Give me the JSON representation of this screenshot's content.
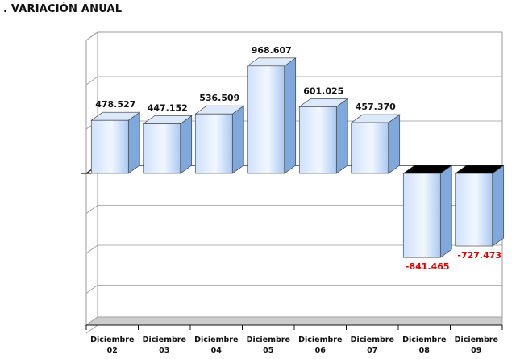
{
  "chart_data": {
    "type": "bar",
    "title": ". VARIACIÓN ANUAL",
    "categories": [
      [
        "Diciembre",
        "02"
      ],
      [
        "Diciembre",
        "03"
      ],
      [
        "Diciembre",
        "04"
      ],
      [
        "Diciembre",
        "05"
      ],
      [
        "Diciembre",
        "06"
      ],
      [
        "Diciembre",
        "07"
      ],
      [
        "Diciembre",
        "08"
      ],
      [
        "Diciembre",
        "09"
      ]
    ],
    "values": [
      478527,
      447152,
      536509,
      968607,
      601025,
      457370,
      -841465,
      -727473
    ],
    "labels": [
      "478.527",
      "447.152",
      "536.509",
      "968.607",
      "601.025",
      "457.370",
      "-841.465",
      "-727.473"
    ],
    "ylim": [
      -1600000,
      1200000
    ],
    "grid": true,
    "colors": {
      "bar_front_top": "#e8f1ff",
      "bar_front_bottom": "#9dc3f5",
      "bar_side": "#7fa8dc",
      "bar_top": "#dbe9fb",
      "negative_top": "#000000",
      "positive_label": "#111111",
      "negative_label": "#e00000",
      "grid": "#999999",
      "axis": "#111111"
    }
  }
}
